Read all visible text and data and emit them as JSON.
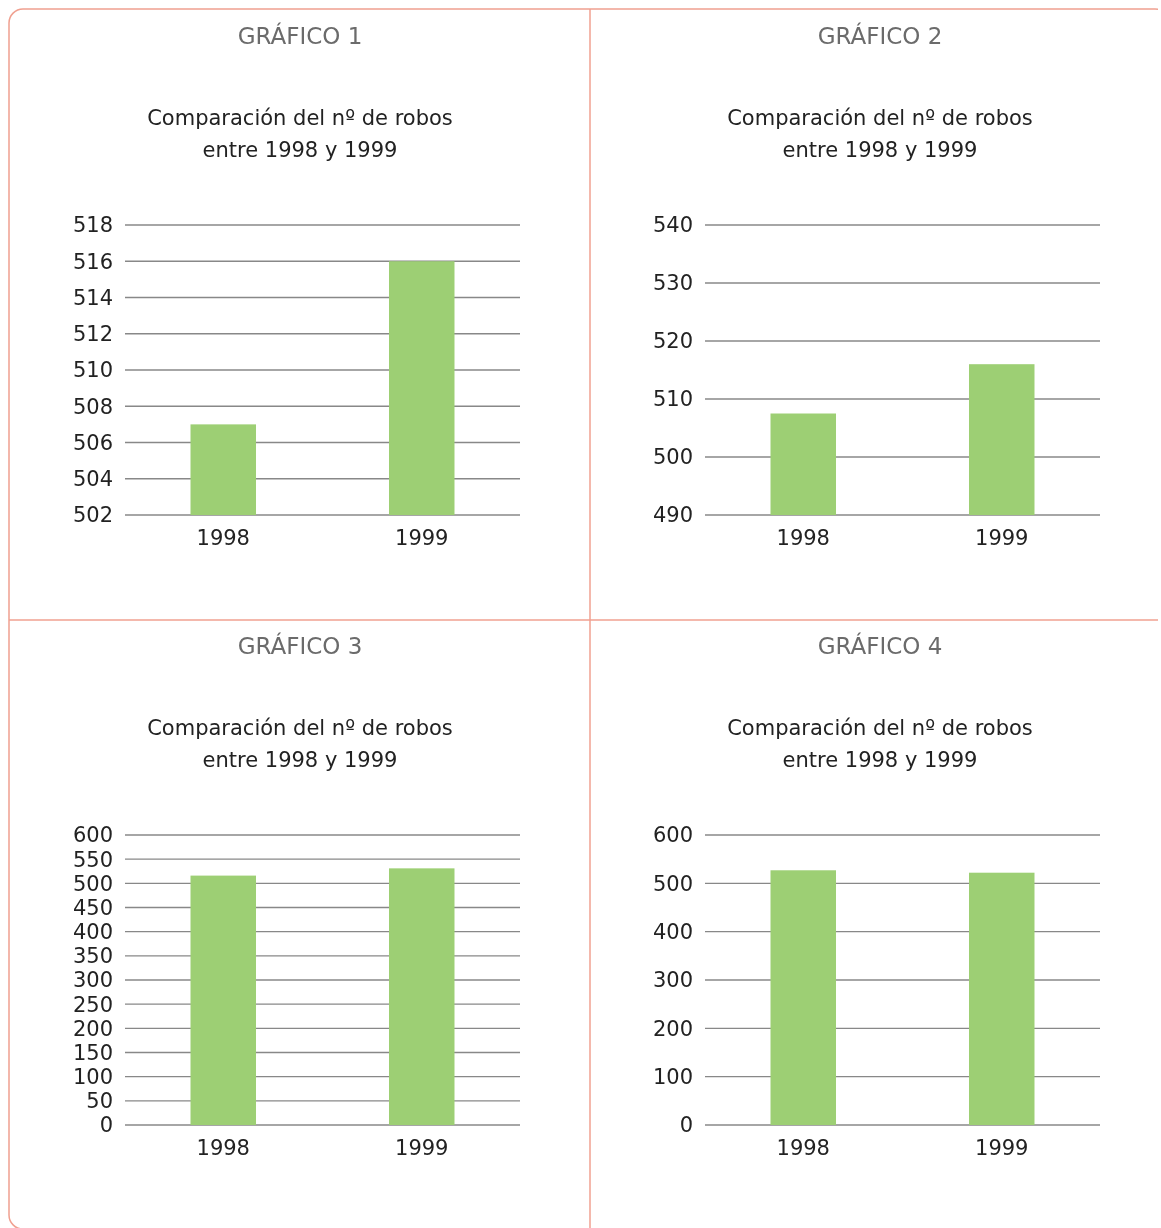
{
  "chart_data": [
    {
      "type": "bar",
      "title": "GRÁFICO 1",
      "subtitle": "Comparación del nº de robos entre 1998 y 1999",
      "categories": [
        "1998",
        "1999"
      ],
      "values": [
        507,
        516
      ],
      "color": "#9dcf74",
      "ylim": [
        502,
        518
      ],
      "yticks": [
        502,
        504,
        506,
        508,
        510,
        512,
        514,
        516,
        518
      ],
      "grid": "y"
    },
    {
      "type": "bar",
      "title": "GRÁFICO 2",
      "subtitle": "Comparación del nº de robos entre 1998 y 1999",
      "categories": [
        "1998",
        "1999"
      ],
      "values": [
        507.5,
        516
      ],
      "color": "#9dcf74",
      "ylim": [
        490,
        540
      ],
      "yticks": [
        490,
        500,
        510,
        520,
        530,
        540
      ],
      "grid": "y"
    },
    {
      "type": "bar",
      "title": "GRÁFICO 3",
      "subtitle": "Comparación del nº de robos entre 1998 y 1999",
      "categories": [
        "1998",
        "1999"
      ],
      "values": [
        516,
        531
      ],
      "color": "#9dcf74",
      "ylim": [
        0,
        600
      ],
      "yticks": [
        0,
        50,
        100,
        150,
        200,
        250,
        300,
        350,
        400,
        450,
        500,
        550,
        600
      ],
      "grid": "y"
    },
    {
      "type": "bar",
      "title": "GRÁFICO 4",
      "subtitle": "Comparación del nº de robos entre 1998 y 1999",
      "categories": [
        "1998",
        "1999"
      ],
      "values": [
        527,
        522
      ],
      "color": "#9dcf74",
      "ylim": [
        0,
        600
      ],
      "yticks": [
        0,
        100,
        200,
        300,
        400,
        500,
        600
      ],
      "grid": "y"
    }
  ]
}
